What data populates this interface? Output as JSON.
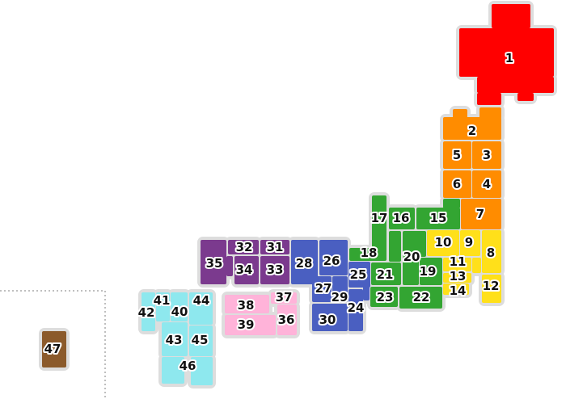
{
  "region_colors": {
    "hokkaido": "#ff0000",
    "tohoku": "#ff8c00",
    "kanto": "#ffe01a",
    "chubu": "#33a532",
    "kinki": "#4a5fc1",
    "chugoku": "#7b3a8e",
    "shikoku": "#ffb3d9",
    "kyushu": "#8ee8ee",
    "okinawa": "#8b5a2b"
  },
  "border_color": "#dddddd",
  "prefectures": [
    {
      "num": "1",
      "region": "hokkaido"
    },
    {
      "num": "2",
      "region": "tohoku"
    },
    {
      "num": "3",
      "region": "tohoku"
    },
    {
      "num": "4",
      "region": "tohoku"
    },
    {
      "num": "5",
      "region": "tohoku"
    },
    {
      "num": "6",
      "region": "tohoku"
    },
    {
      "num": "7",
      "region": "tohoku"
    },
    {
      "num": "8",
      "region": "kanto"
    },
    {
      "num": "9",
      "region": "kanto"
    },
    {
      "num": "10",
      "region": "kanto"
    },
    {
      "num": "11",
      "region": "kanto"
    },
    {
      "num": "12",
      "region": "kanto"
    },
    {
      "num": "13",
      "region": "kanto"
    },
    {
      "num": "14",
      "region": "kanto"
    },
    {
      "num": "15",
      "region": "chubu"
    },
    {
      "num": "16",
      "region": "chubu"
    },
    {
      "num": "17",
      "region": "chubu"
    },
    {
      "num": "18",
      "region": "chubu"
    },
    {
      "num": "19",
      "region": "chubu"
    },
    {
      "num": "20",
      "region": "chubu"
    },
    {
      "num": "21",
      "region": "chubu"
    },
    {
      "num": "22",
      "region": "chubu"
    },
    {
      "num": "23",
      "region": "chubu"
    },
    {
      "num": "24",
      "region": "kinki"
    },
    {
      "num": "25",
      "region": "kinki"
    },
    {
      "num": "26",
      "region": "kinki"
    },
    {
      "num": "27",
      "region": "kinki"
    },
    {
      "num": "28",
      "region": "kinki"
    },
    {
      "num": "29",
      "region": "kinki"
    },
    {
      "num": "30",
      "region": "kinki"
    },
    {
      "num": "31",
      "region": "chugoku"
    },
    {
      "num": "32",
      "region": "chugoku"
    },
    {
      "num": "33",
      "region": "chugoku"
    },
    {
      "num": "34",
      "region": "chugoku"
    },
    {
      "num": "35",
      "region": "chugoku"
    },
    {
      "num": "36",
      "region": "shikoku"
    },
    {
      "num": "37",
      "region": "shikoku"
    },
    {
      "num": "38",
      "region": "shikoku"
    },
    {
      "num": "39",
      "region": "shikoku"
    },
    {
      "num": "40",
      "region": "kyushu"
    },
    {
      "num": "41",
      "region": "kyushu"
    },
    {
      "num": "42",
      "region": "kyushu"
    },
    {
      "num": "43",
      "region": "kyushu"
    },
    {
      "num": "44",
      "region": "kyushu"
    },
    {
      "num": "45",
      "region": "kyushu"
    },
    {
      "num": "46",
      "region": "kyushu"
    },
    {
      "num": "47",
      "region": "okinawa"
    }
  ]
}
